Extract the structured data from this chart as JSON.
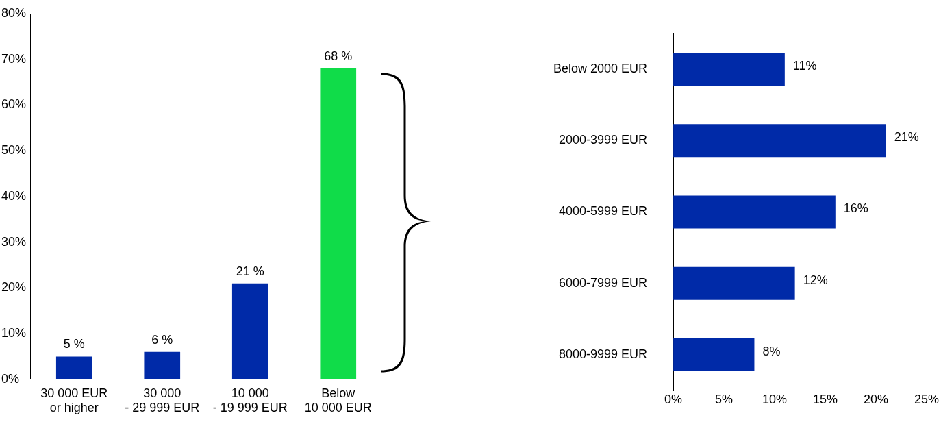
{
  "chart_data": [
    {
      "type": "bar",
      "categories": [
        "30 000 EUR\nor higher",
        "30 000\n- 29 999 EUR",
        "10 000\n- 19 999 EUR",
        "Below\n10 000 EUR"
      ],
      "values": [
        5,
        6,
        21,
        68
      ],
      "colors": [
        "#002aa8",
        "#002aa8",
        "#002aa8",
        "#10dc49"
      ],
      "value_labels": [
        "5 %",
        "6 %",
        "21 %",
        "68 %"
      ],
      "ylim": [
        0,
        80
      ],
      "yticks": [
        {
          "value": 0,
          "label": "0%"
        },
        {
          "value": 10,
          "label": "10%"
        },
        {
          "value": 20,
          "label": "20%"
        },
        {
          "value": 30,
          "label": "30%"
        },
        {
          "value": 40,
          "label": "40%"
        },
        {
          "value": 50,
          "label": "50%"
        },
        {
          "value": 60,
          "label": "60%"
        },
        {
          "value": 70,
          "label": "70%"
        },
        {
          "value": 80,
          "label": "80%"
        }
      ],
      "grid": false,
      "legend": false
    },
    {
      "type": "bar",
      "orientation": "horizontal",
      "categories": [
        "Below 2000 EUR",
        "2000-3999 EUR",
        "4000-5999 EUR",
        "6000-7999 EUR",
        "8000-9999 EUR"
      ],
      "values": [
        11,
        21,
        16,
        12,
        8
      ],
      "color": "#002aa8",
      "value_labels": [
        "11%",
        "21%",
        "16%",
        "12%",
        "8%"
      ],
      "xlim": [
        0,
        25
      ],
      "xticks": [
        {
          "value": 0,
          "label": "0%"
        },
        {
          "value": 5,
          "label": "5%"
        },
        {
          "value": 10,
          "label": "10%"
        },
        {
          "value": 15,
          "label": "15%"
        },
        {
          "value": 20,
          "label": "20%"
        },
        {
          "value": 25,
          "label": "25%"
        }
      ],
      "grid": false,
      "legend": false
    }
  ]
}
